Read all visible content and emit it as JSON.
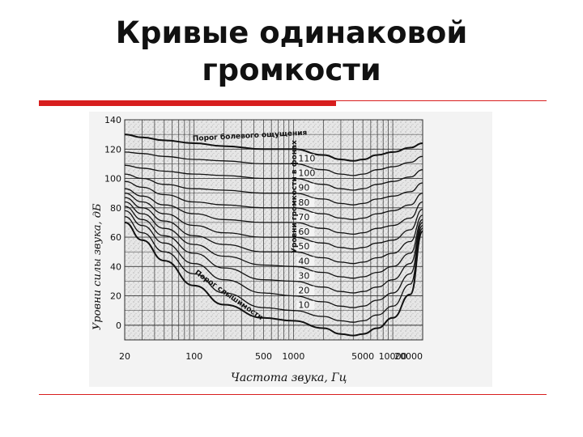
{
  "slide": {
    "title_line1": "Кривые одинаковой",
    "title_line2": "громкости"
  },
  "colors": {
    "accent_red": "#d81e1e",
    "plot_bg": "#e8e8e8",
    "ink": "#111111"
  },
  "chart_data": {
    "type": "line",
    "x_scale": "log",
    "xlim": [
      20,
      20000
    ],
    "ylim": [
      -10,
      140
    ],
    "ylabel": "Уровни силы звука, дБ",
    "xlabel": "Частота звука, Гц",
    "x_ticks": [
      20,
      100,
      500,
      1000,
      5000,
      10000,
      20000
    ],
    "x_tick_labels": [
      "20",
      "100",
      "500",
      "1000",
      "5000",
      "10000",
      "20000"
    ],
    "y_ticks": [
      0,
      20,
      40,
      60,
      80,
      100,
      120,
      140
    ],
    "y_tick_labels": [
      "0",
      "20",
      "40",
      "60",
      "80",
      "100",
      "120",
      "140"
    ],
    "grid": true,
    "phon_axis_label": "Уровни громкости в фонах",
    "phon_labels": [
      "110",
      "100",
      "90",
      "80",
      "70",
      "60",
      "50",
      "40",
      "30",
      "20",
      "10"
    ],
    "annotations": {
      "pain_threshold": "Порог болевого ощущения",
      "hearing_threshold": "Порог слышимости"
    },
    "x": [
      20,
      30,
      50,
      100,
      200,
      500,
      1000,
      2000,
      3000,
      4000,
      5000,
      7000,
      10000,
      15000,
      20000
    ],
    "series": [
      {
        "values": [
          130,
          128,
          126,
          124,
          122,
          120,
          120,
          116,
          113,
          112,
          113,
          116,
          118,
          121,
          124
        ]
      },
      {
        "values": [
          118,
          117,
          115,
          113,
          112,
          110,
          110,
          106,
          103,
          102,
          103,
          106,
          108,
          111,
          115
        ]
      },
      {
        "values": [
          109,
          107,
          105,
          103,
          102,
          100,
          100,
          96,
          93,
          92,
          93,
          96,
          98,
          101,
          106
        ]
      },
      {
        "values": [
          103,
          100,
          96,
          93,
          92,
          90,
          90,
          86,
          83,
          82,
          83,
          86,
          88,
          91,
          97
        ]
      },
      {
        "values": [
          98,
          94,
          89,
          84,
          82,
          80,
          80,
          76,
          73,
          72,
          73,
          76,
          78,
          82,
          90
        ]
      },
      {
        "values": [
          93,
          88,
          82,
          76,
          72,
          70,
          70,
          66,
          63,
          62,
          63,
          66,
          68,
          73,
          84
        ]
      },
      {
        "values": [
          90,
          84,
          76,
          68,
          63,
          60,
          60,
          56,
          53,
          52,
          53,
          56,
          58,
          65,
          79
        ]
      },
      {
        "values": [
          87,
          80,
          71,
          61,
          55,
          50,
          50,
          46,
          43,
          42,
          43,
          46,
          49,
          57,
          75
        ]
      },
      {
        "values": [
          84,
          76,
          66,
          55,
          47,
          41,
          40,
          36,
          33,
          32,
          33,
          36,
          40,
          49,
          72
        ]
      },
      {
        "values": [
          81,
          72,
          61,
          49,
          39,
          31,
          30,
          26,
          23,
          22,
          23,
          26,
          31,
          42,
          70
        ]
      },
      {
        "values": [
          78,
          68,
          56,
          42,
          31,
          22,
          20,
          16,
          13,
          12,
          13,
          17,
          22,
          35,
          68
        ]
      },
      {
        "values": [
          74,
          63,
          50,
          35,
          22,
          12,
          10,
          6,
          3,
          2,
          3,
          7,
          13,
          28,
          66
        ]
      },
      {
        "values": [
          70,
          58,
          44,
          27,
          14,
          5,
          3,
          -2,
          -6,
          -7,
          -6,
          -2,
          5,
          21,
          64
        ]
      }
    ]
  }
}
